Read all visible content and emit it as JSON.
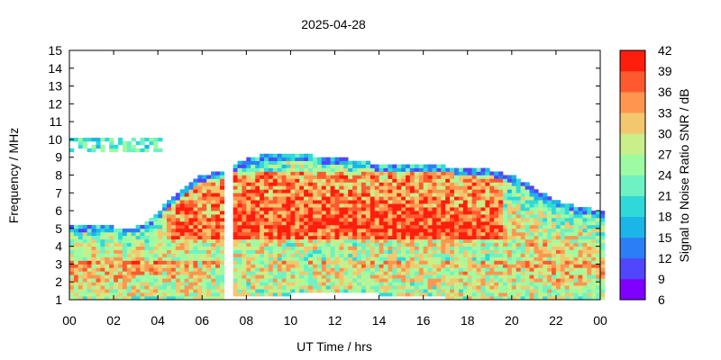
{
  "chart_data": {
    "type": "heatmap",
    "title": "2025-04-28",
    "xlabel": "UT Time / hrs",
    "ylabel": "Frequency / MHz",
    "colorbar_label": "Signal to Noise Ratio SNR / dB",
    "xlim": [
      0,
      24
    ],
    "ylim": [
      1,
      15
    ],
    "x_ticks": [
      "00",
      "02",
      "04",
      "06",
      "08",
      "10",
      "12",
      "14",
      "16",
      "18",
      "20",
      "22",
      "00"
    ],
    "y_ticks": [
      "1",
      "2",
      "3",
      "4",
      "5",
      "6",
      "7",
      "8",
      "9",
      "10",
      "11",
      "12",
      "13",
      "14",
      "15"
    ],
    "colorbar_ticks": [
      "6",
      "9",
      "12",
      "15",
      "18",
      "21",
      "24",
      "27",
      "30",
      "33",
      "36",
      "39",
      "42"
    ],
    "colorbar_range": [
      6,
      42
    ],
    "colorbar_colors": [
      "#7f00ff",
      "#5046fc",
      "#2c7ef7",
      "#1bb6e7",
      "#30d9d9",
      "#6ff2c3",
      "#9dfca3",
      "#c8ef8a",
      "#f3c76e",
      "#ff9650",
      "#ff5a2e",
      "#ff1e0e"
    ],
    "upper_envelope_mhz": [
      [
        0.0,
        5.2
      ],
      [
        1.0,
        5.2
      ],
      [
        2.0,
        5.1
      ],
      [
        3.0,
        5.1
      ],
      [
        3.5,
        5.4
      ],
      [
        4.0,
        5.9
      ],
      [
        4.5,
        6.6
      ],
      [
        5.0,
        7.1
      ],
      [
        5.5,
        7.6
      ],
      [
        6.0,
        8.0
      ],
      [
        6.8,
        8.2
      ],
      [
        7.2,
        8.2
      ],
      [
        7.5,
        8.6
      ],
      [
        8.0,
        8.9
      ],
      [
        9.0,
        9.2
      ],
      [
        10.0,
        9.2
      ],
      [
        11.0,
        9.1
      ],
      [
        12.0,
        9.0
      ],
      [
        13.0,
        8.8
      ],
      [
        14.0,
        8.6
      ],
      [
        15.0,
        8.6
      ],
      [
        16.0,
        8.6
      ],
      [
        17.0,
        8.5
      ],
      [
        18.0,
        8.4
      ],
      [
        19.0,
        8.3
      ],
      [
        20.0,
        8.0
      ],
      [
        21.0,
        7.3
      ],
      [
        22.0,
        6.6
      ],
      [
        23.0,
        6.2
      ],
      [
        24.0,
        6.0
      ]
    ],
    "lower_envelope_mhz": [
      [
        0.0,
        1.0
      ],
      [
        6.0,
        1.0
      ],
      [
        8.0,
        1.2
      ],
      [
        10.0,
        1.3
      ],
      [
        12.0,
        1.4
      ],
      [
        14.0,
        1.3
      ],
      [
        16.0,
        1.2
      ],
      [
        18.0,
        1.0
      ],
      [
        24.0,
        1.0
      ]
    ],
    "data_gap_hrs": [
      7.1,
      7.35
    ],
    "sporadic_layer": {
      "x_range": [
        0.0,
        4.2
      ],
      "y_range": [
        9.3,
        10.0
      ],
      "snr_db": 22
    },
    "high_snr_region": {
      "x_range": [
        4.5,
        19.5
      ],
      "y_range": [
        4.5,
        8.2
      ],
      "snr_db": 40
    }
  }
}
